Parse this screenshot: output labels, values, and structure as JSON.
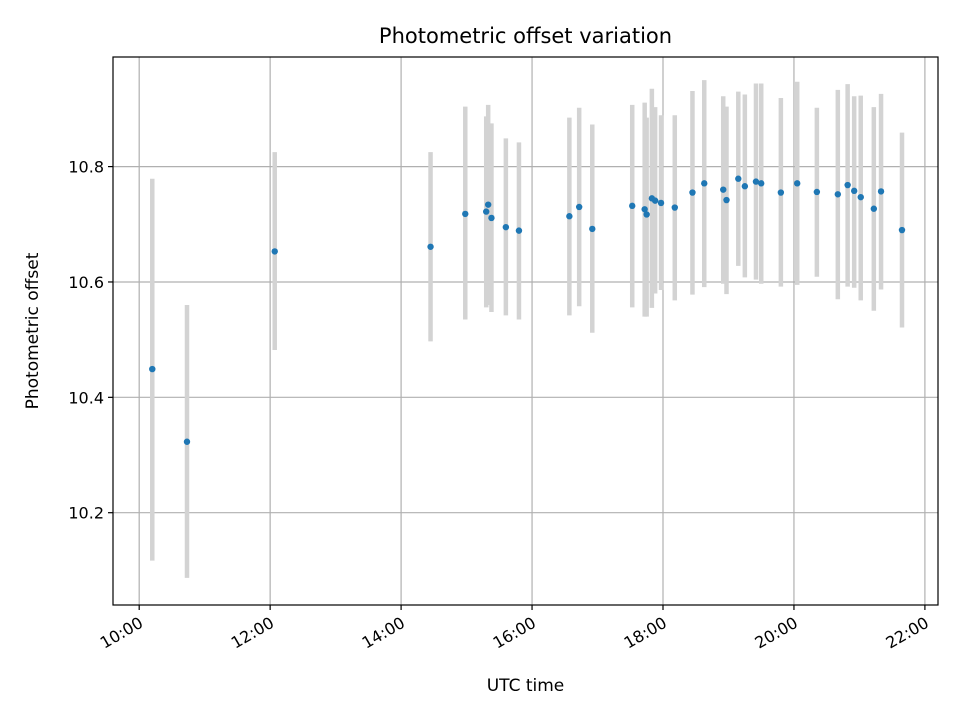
{
  "chart_data": {
    "type": "scatter",
    "title": "Photometric offset variation",
    "xlabel": "UTC time",
    "ylabel": "Photometric offset",
    "x_unit": "hours (UTC)",
    "xlim": [
      9.6,
      22.2
    ],
    "ylim": [
      10.04,
      10.99
    ],
    "x_ticks": [
      {
        "value": 10,
        "label": "10:00"
      },
      {
        "value": 12,
        "label": "12:00"
      },
      {
        "value": 14,
        "label": "14:00"
      },
      {
        "value": 16,
        "label": "16:00"
      },
      {
        "value": 18,
        "label": "18:00"
      },
      {
        "value": 20,
        "label": "20:00"
      },
      {
        "value": 22,
        "label": "22:00"
      }
    ],
    "y_ticks": [
      {
        "value": 10.2,
        "label": "10.2"
      },
      {
        "value": 10.4,
        "label": "10.4"
      },
      {
        "value": 10.6,
        "label": "10.6"
      },
      {
        "value": 10.8,
        "label": "10.8"
      }
    ],
    "grid": true,
    "colors": {
      "point": "#1f77b4",
      "errorbar": "#d3d3d3",
      "grid": "#b0b0b0"
    },
    "points": [
      {
        "x": 10.2,
        "y": 10.449,
        "ylow": 10.117,
        "yhigh": 10.779
      },
      {
        "x": 10.73,
        "y": 10.323,
        "ylow": 10.087,
        "yhigh": 10.56
      },
      {
        "x": 12.07,
        "y": 10.653,
        "ylow": 10.482,
        "yhigh": 10.825
      },
      {
        "x": 14.45,
        "y": 10.661,
        "ylow": 10.497,
        "yhigh": 10.825
      },
      {
        "x": 14.98,
        "y": 10.718,
        "ylow": 10.535,
        "yhigh": 10.904
      },
      {
        "x": 15.3,
        "y": 10.722,
        "ylow": 10.556,
        "yhigh": 10.887
      },
      {
        "x": 15.33,
        "y": 10.734,
        "ylow": 10.56,
        "yhigh": 10.907
      },
      {
        "x": 15.38,
        "y": 10.711,
        "ylow": 10.548,
        "yhigh": 10.875
      },
      {
        "x": 15.6,
        "y": 10.695,
        "ylow": 10.542,
        "yhigh": 10.849
      },
      {
        "x": 15.8,
        "y": 10.689,
        "ylow": 10.535,
        "yhigh": 10.842
      },
      {
        "x": 16.57,
        "y": 10.714,
        "ylow": 10.542,
        "yhigh": 10.885
      },
      {
        "x": 16.72,
        "y": 10.73,
        "ylow": 10.558,
        "yhigh": 10.902
      },
      {
        "x": 16.92,
        "y": 10.692,
        "ylow": 10.512,
        "yhigh": 10.873
      },
      {
        "x": 17.53,
        "y": 10.732,
        "ylow": 10.556,
        "yhigh": 10.907
      },
      {
        "x": 17.72,
        "y": 10.726,
        "ylow": 10.54,
        "yhigh": 10.911
      },
      {
        "x": 17.75,
        "y": 10.717,
        "ylow": 10.54,
        "yhigh": 10.885
      },
      {
        "x": 17.83,
        "y": 10.745,
        "ylow": 10.555,
        "yhigh": 10.935
      },
      {
        "x": 17.88,
        "y": 10.741,
        "ylow": 10.58,
        "yhigh": 10.903
      },
      {
        "x": 17.97,
        "y": 10.737,
        "ylow": 10.586,
        "yhigh": 10.889
      },
      {
        "x": 18.18,
        "y": 10.729,
        "ylow": 10.568,
        "yhigh": 10.889
      },
      {
        "x": 18.45,
        "y": 10.755,
        "ylow": 10.578,
        "yhigh": 10.931
      },
      {
        "x": 18.63,
        "y": 10.771,
        "ylow": 10.591,
        "yhigh": 10.95
      },
      {
        "x": 18.92,
        "y": 10.76,
        "ylow": 10.597,
        "yhigh": 10.922
      },
      {
        "x": 18.97,
        "y": 10.742,
        "ylow": 10.579,
        "yhigh": 10.904
      },
      {
        "x": 19.15,
        "y": 10.779,
        "ylow": 10.628,
        "yhigh": 10.93
      },
      {
        "x": 19.25,
        "y": 10.766,
        "ylow": 10.608,
        "yhigh": 10.925
      },
      {
        "x": 19.42,
        "y": 10.774,
        "ylow": 10.604,
        "yhigh": 10.944
      },
      {
        "x": 19.5,
        "y": 10.771,
        "ylow": 10.597,
        "yhigh": 10.944
      },
      {
        "x": 19.8,
        "y": 10.755,
        "ylow": 10.592,
        "yhigh": 10.919
      },
      {
        "x": 20.05,
        "y": 10.771,
        "ylow": 10.595,
        "yhigh": 10.947
      },
      {
        "x": 20.35,
        "y": 10.756,
        "ylow": 10.609,
        "yhigh": 10.902
      },
      {
        "x": 20.67,
        "y": 10.752,
        "ylow": 10.57,
        "yhigh": 10.933
      },
      {
        "x": 20.82,
        "y": 10.768,
        "ylow": 10.592,
        "yhigh": 10.943
      },
      {
        "x": 20.92,
        "y": 10.758,
        "ylow": 10.59,
        "yhigh": 10.922
      },
      {
        "x": 21.02,
        "y": 10.747,
        "ylow": 10.568,
        "yhigh": 10.923
      },
      {
        "x": 21.22,
        "y": 10.727,
        "ylow": 10.55,
        "yhigh": 10.903
      },
      {
        "x": 21.33,
        "y": 10.757,
        "ylow": 10.587,
        "yhigh": 10.926
      },
      {
        "x": 21.65,
        "y": 10.69,
        "ylow": 10.521,
        "yhigh": 10.859
      }
    ]
  }
}
